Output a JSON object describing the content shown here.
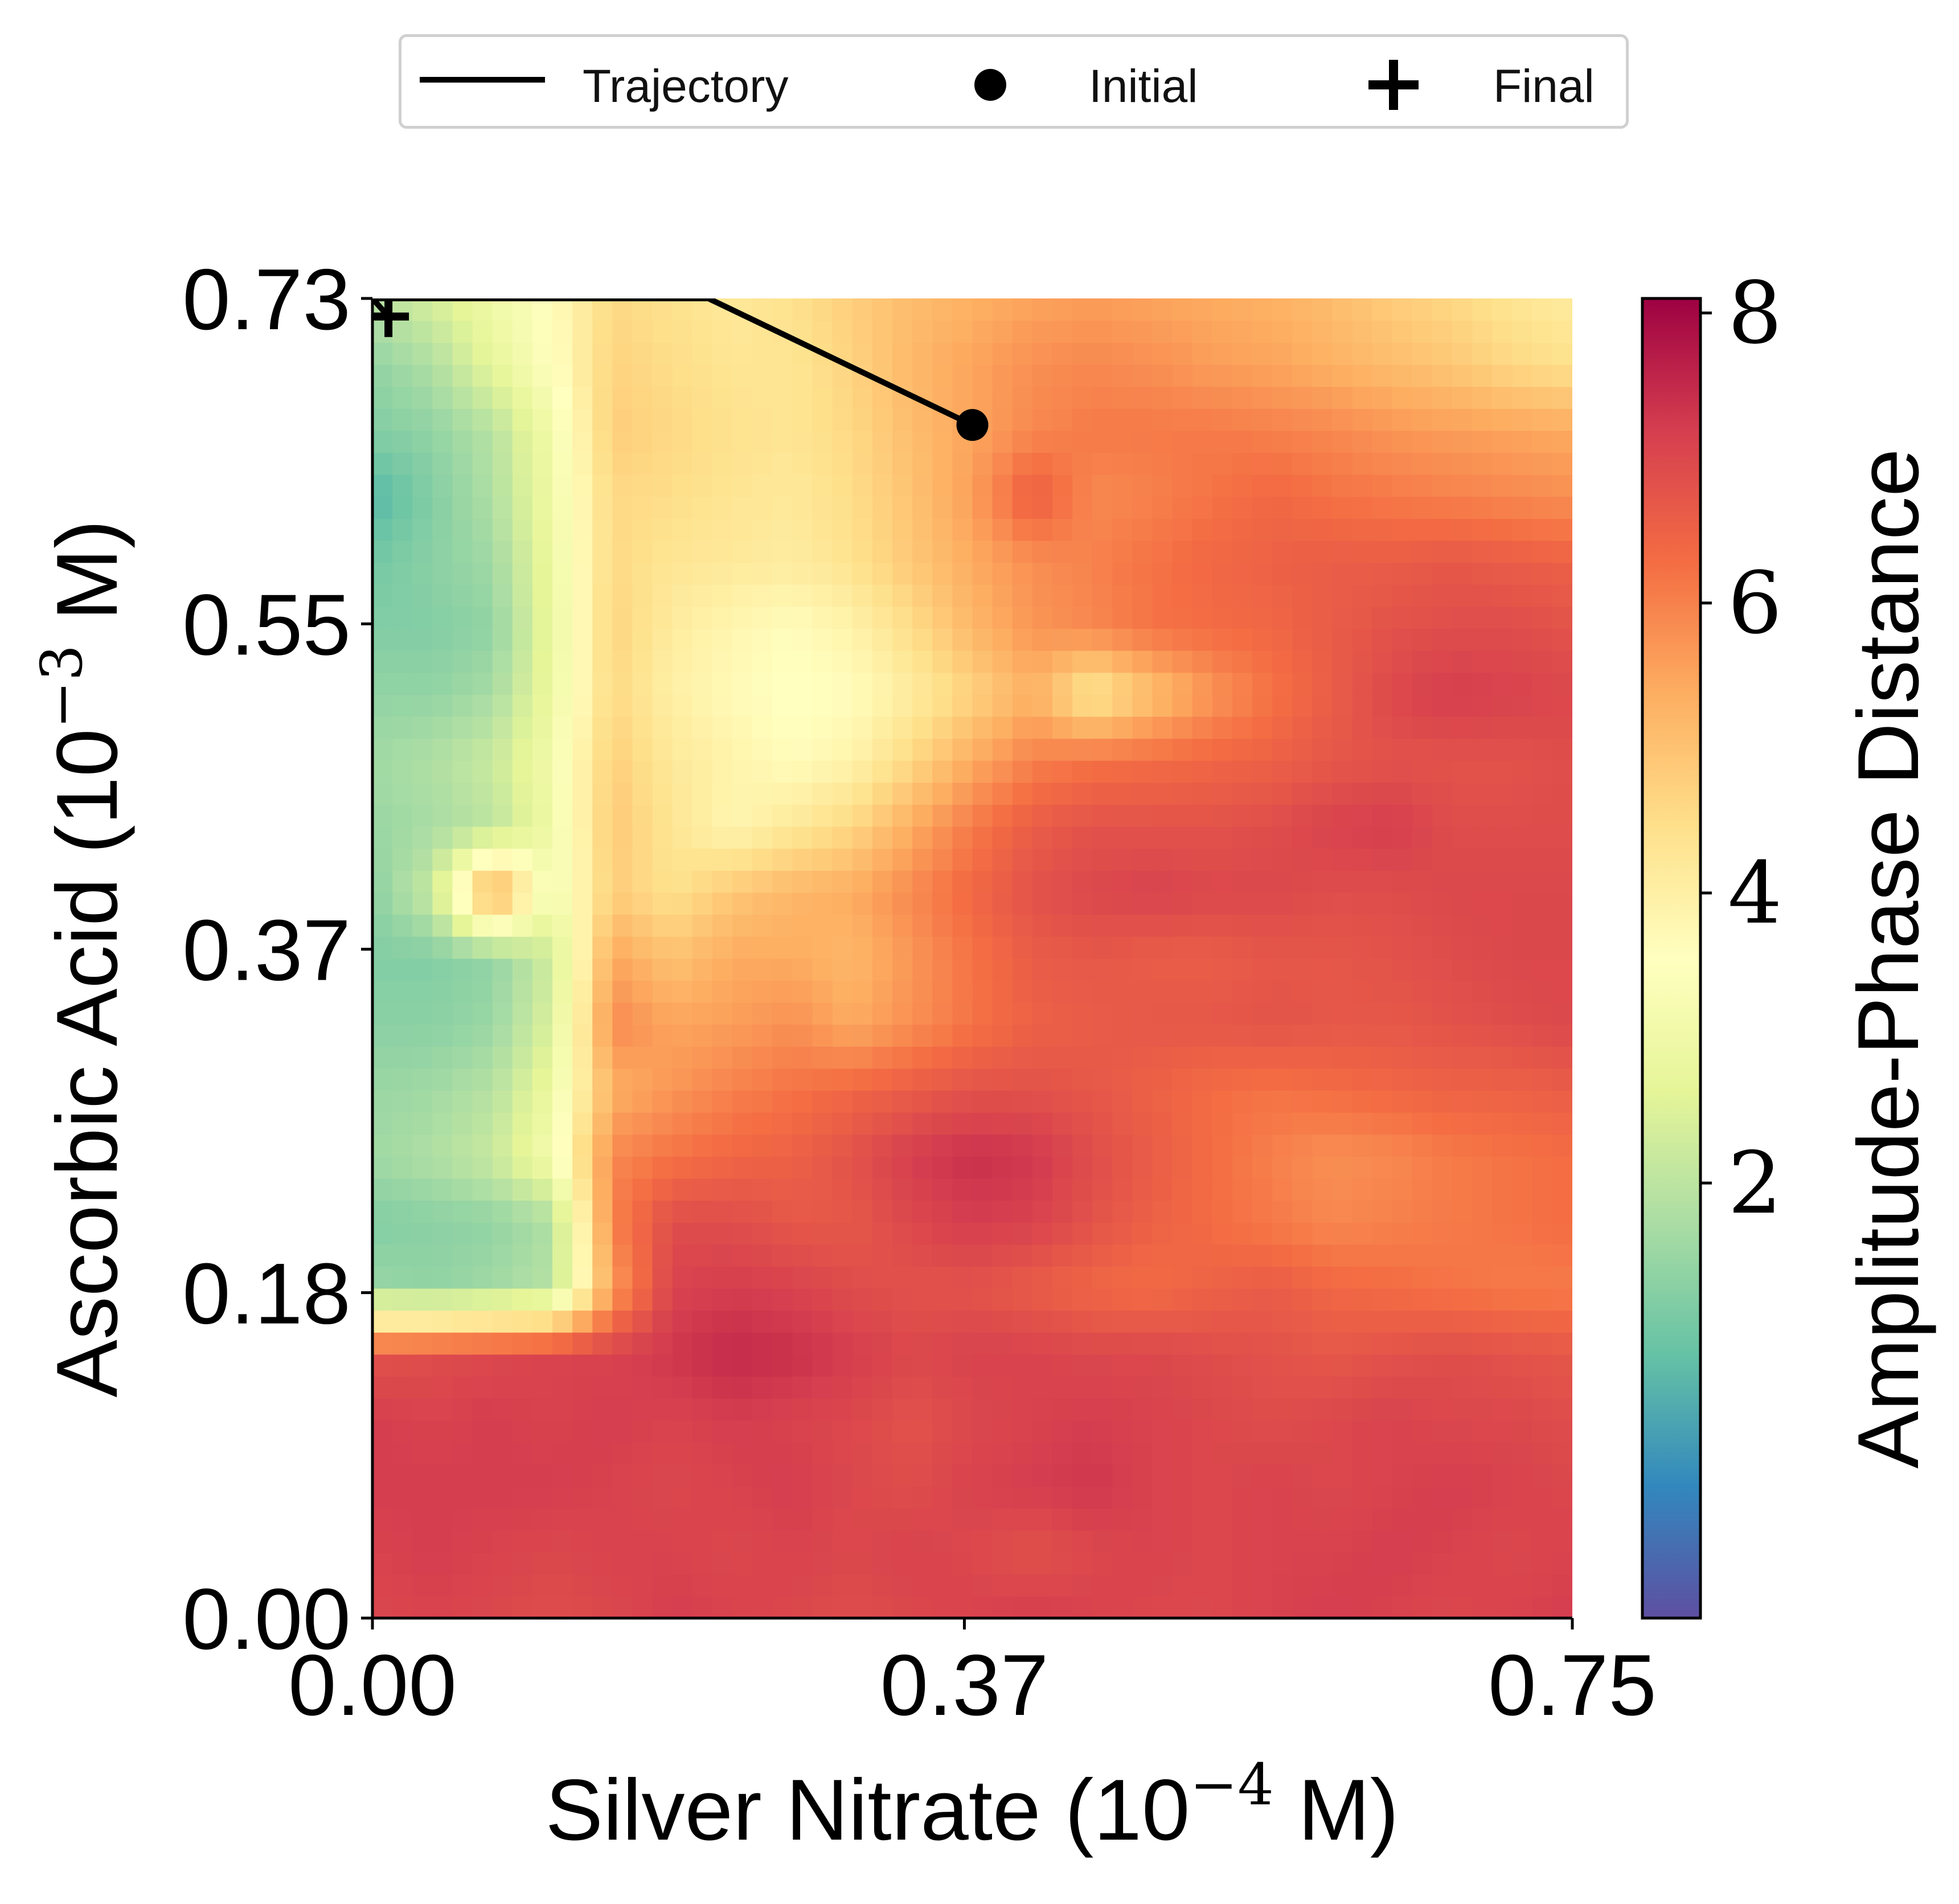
{
  "chart_data": {
    "type": "heatmap",
    "xlabel": "Silver Nitrate (10⁻⁴ M)",
    "xlabel_parts": {
      "pre": "Silver Nitrate (10",
      "exp": "−4",
      "post": " M)"
    },
    "ylabel": "Ascorbic Acid (10⁻³ M)",
    "ylabel_parts": {
      "pre": "Ascorbic Acid (10",
      "exp": "−3",
      "post": " M)"
    },
    "xlim": [
      0.0,
      0.75
    ],
    "ylim": [
      0.0,
      0.73
    ],
    "x_ticks": [
      "0.00",
      "0.37",
      "0.75"
    ],
    "y_ticks": [
      "0.00",
      "0.18",
      "0.37",
      "0.55",
      "0.73"
    ],
    "colorbar": {
      "label": "Amplitude-Phase Distance",
      "ticks": [
        "2",
        "4",
        "6",
        "8"
      ],
      "range": [
        -1.0,
        8.1
      ],
      "colormap": "Spectral_r"
    },
    "x": [
      0.0,
      0.0375,
      0.075,
      0.1125,
      0.15,
      0.1875,
      0.225,
      0.2625,
      0.3,
      0.3375,
      0.375,
      0.4125,
      0.45,
      0.4875,
      0.525,
      0.5625,
      0.6,
      0.6375,
      0.675,
      0.7125,
      0.75
    ],
    "y": [
      0.0,
      0.0365,
      0.073,
      0.1095,
      0.146,
      0.1825,
      0.219,
      0.2555,
      0.292,
      0.3285,
      0.365,
      0.4015,
      0.438,
      0.4745,
      0.511,
      0.5475,
      0.584,
      0.6205,
      0.657,
      0.6935,
      0.73
    ],
    "z": [
      [
        7.0,
        7.1,
        7.0,
        6.9,
        7.0,
        7.2,
        7.1,
        7.0,
        6.9,
        7.0,
        7.1,
        7.2,
        7.1,
        7.0,
        7.0,
        7.1,
        7.2,
        7.1,
        7.0,
        7.1,
        7.2
      ],
      [
        7.1,
        7.2,
        7.1,
        7.0,
        7.1,
        7.1,
        7.0,
        7.1,
        7.0,
        7.1,
        7.0,
        6.8,
        7.0,
        7.1,
        7.0,
        7.1,
        7.1,
        7.2,
        7.1,
        7.0,
        7.1
      ],
      [
        7.2,
        7.2,
        7.2,
        7.2,
        7.1,
        7.0,
        7.1,
        7.2,
        7.0,
        6.9,
        7.1,
        7.2,
        7.3,
        7.1,
        7.0,
        7.1,
        7.0,
        7.1,
        7.2,
        7.1,
        7.0
      ],
      [
        7.2,
        7.1,
        7.2,
        7.1,
        7.2,
        7.1,
        7.2,
        7.1,
        7.0,
        6.8,
        7.0,
        7.1,
        7.2,
        7.1,
        7.0,
        6.9,
        7.0,
        7.1,
        7.0,
        7.0,
        6.9
      ],
      [
        6.8,
        6.9,
        7.0,
        7.1,
        7.1,
        7.3,
        7.5,
        7.4,
        7.2,
        7.0,
        7.1,
        7.1,
        7.0,
        7.0,
        6.9,
        6.8,
        6.7,
        6.8,
        6.9,
        6.8,
        6.7
      ],
      [
        1.5,
        1.4,
        1.6,
        1.9,
        5.6,
        7.1,
        7.2,
        7.1,
        6.9,
        6.8,
        6.8,
        6.6,
        6.4,
        6.3,
        6.5,
        6.6,
        6.4,
        6.3,
        6.2,
        6.1,
        6.1
      ],
      [
        1.2,
        1.3,
        1.4,
        1.8,
        6.0,
        6.9,
        6.9,
        6.7,
        6.7,
        7.0,
        7.2,
        7.1,
        6.8,
        6.5,
        6.3,
        6.1,
        5.9,
        6.0,
        6.1,
        6.2,
        6.3
      ],
      [
        1.6,
        1.8,
        2.2,
        3.2,
        5.9,
        6.2,
        6.4,
        6.5,
        6.8,
        7.2,
        7.4,
        7.3,
        6.9,
        6.6,
        6.3,
        6.0,
        5.8,
        5.9,
        6.1,
        6.2,
        6.3
      ],
      [
        1.5,
        1.6,
        1.9,
        2.9,
        5.3,
        5.7,
        6.0,
        6.2,
        6.4,
        6.6,
        6.8,
        6.8,
        6.7,
        6.5,
        6.3,
        6.2,
        6.3,
        6.4,
        6.5,
        6.5,
        6.6
      ],
      [
        1.3,
        1.3,
        1.5,
        2.5,
        5.9,
        5.5,
        5.6,
        5.8,
        5.4,
        5.8,
        6.2,
        6.5,
        6.6,
        6.7,
        6.7,
        6.8,
        6.7,
        6.7,
        6.8,
        6.9,
        7.0
      ],
      [
        1.2,
        1.2,
        1.4,
        2.3,
        5.5,
        5.0,
        5.4,
        5.4,
        5.2,
        5.7,
        6.2,
        6.6,
        6.7,
        6.6,
        6.6,
        6.7,
        6.7,
        6.8,
        6.9,
        7.0,
        7.0
      ],
      [
        1.3,
        2.2,
        5.7,
        3.0,
        4.8,
        4.4,
        4.9,
        5.2,
        5.4,
        5.9,
        6.4,
        6.8,
        7.0,
        7.1,
        7.0,
        7.0,
        6.9,
        6.9,
        7.0,
        7.0,
        7.0
      ],
      [
        1.5,
        1.7,
        2.0,
        3.0,
        4.9,
        4.3,
        3.8,
        4.2,
        4.6,
        5.4,
        6.1,
        6.6,
        6.8,
        6.8,
        6.8,
        6.9,
        7.1,
        7.2,
        6.9,
        6.9,
        6.9
      ],
      [
        1.6,
        1.8,
        2.2,
        3.1,
        4.8,
        4.2,
        3.9,
        3.6,
        3.9,
        4.6,
        5.4,
        6.0,
        6.2,
        6.3,
        6.4,
        6.5,
        6.7,
        6.8,
        6.8,
        6.8,
        6.9
      ],
      [
        1.4,
        1.4,
        1.7,
        2.9,
        4.6,
        4.0,
        3.7,
        3.5,
        3.6,
        4.1,
        4.7,
        5.3,
        4.2,
        5.0,
        5.7,
        6.2,
        6.6,
        7.0,
        7.2,
        7.1,
        7.0
      ],
      [
        1.2,
        1.2,
        1.4,
        2.8,
        4.7,
        4.1,
        3.8,
        3.6,
        3.9,
        4.5,
        5.2,
        5.7,
        5.9,
        6.2,
        6.3,
        6.4,
        6.6,
        6.8,
        6.9,
        6.9,
        6.8
      ],
      [
        1.0,
        1.3,
        1.6,
        2.9,
        4.6,
        4.3,
        4.2,
        4.1,
        4.4,
        4.9,
        5.4,
        5.8,
        6.0,
        6.2,
        6.4,
        6.5,
        6.6,
        6.6,
        6.7,
        6.6,
        6.5
      ],
      [
        0.6,
        1.2,
        1.8,
        3.0,
        4.6,
        4.5,
        4.3,
        4.2,
        4.5,
        5.0,
        5.6,
        6.6,
        5.9,
        6.0,
        6.2,
        6.4,
        6.2,
        6.1,
        6.0,
        5.9,
        5.8
      ],
      [
        1.2,
        1.4,
        1.9,
        3.1,
        4.8,
        4.6,
        4.4,
        4.3,
        4.6,
        5.1,
        5.5,
        5.9,
        6.1,
        6.1,
        6.1,
        6.0,
        5.9,
        5.7,
        5.6,
        5.5,
        5.4
      ],
      [
        1.4,
        1.8,
        2.7,
        3.5,
        4.7,
        4.5,
        4.3,
        4.3,
        4.7,
        5.2,
        5.5,
        5.8,
        5.9,
        5.8,
        5.6,
        5.5,
        5.3,
        5.1,
        4.9,
        4.6,
        4.4
      ],
      [
        1.9,
        2.4,
        3.0,
        3.6,
        4.6,
        4.4,
        4.2,
        4.4,
        4.8,
        5.1,
        5.3,
        5.5,
        5.6,
        5.5,
        5.4,
        5.3,
        5.1,
        4.8,
        4.6,
        4.3,
        4.1
      ]
    ],
    "trajectory": {
      "name": "Trajectory",
      "points": [
        [
          0.375,
          0.66
        ],
        [
          0.21,
          0.73
        ],
        [
          0.0,
          0.73
        ],
        [
          0.0,
          0.73
        ],
        [
          0.01,
          0.72
        ]
      ]
    },
    "initial": {
      "name": "Initial",
      "x": 0.375,
      "y": 0.66
    },
    "final": {
      "name": "Final",
      "x": 0.01,
      "y": 0.72
    },
    "legend": {
      "placement": "top-center",
      "entries": [
        "Trajectory",
        "Initial",
        "Final"
      ]
    },
    "grid": false
  }
}
